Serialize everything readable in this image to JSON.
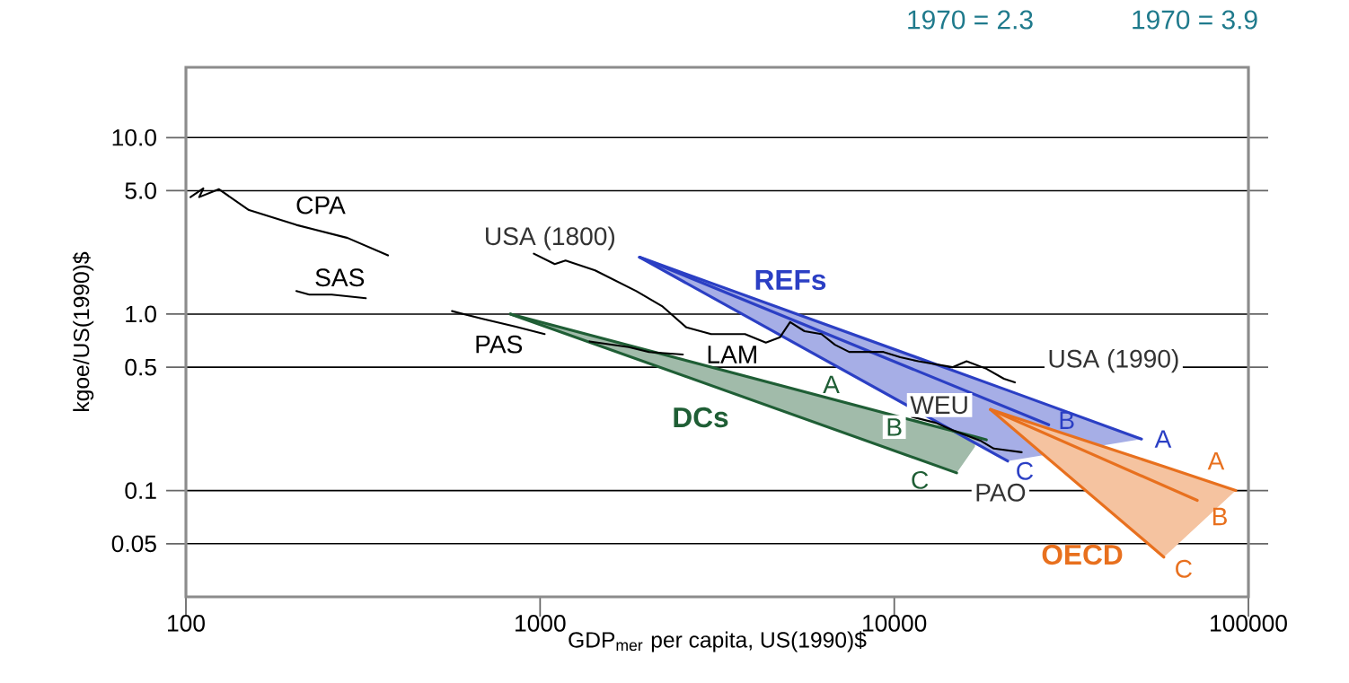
{
  "chart_data": {
    "type": "line",
    "xlabel": "GDP$_{mer}$ per capita, US(1990)$",
    "ylabel": "kgoe/US(1990)$",
    "log": "xy",
    "grid": "y",
    "xlim": [
      100,
      100000
    ],
    "ylim": [
      0.025,
      25
    ],
    "xticks": [
      100,
      1000,
      10000,
      100000
    ],
    "yticks": [
      {
        "value": 0.05,
        "label": "0.05"
      },
      {
        "value": 0.1,
        "label": "0.1"
      },
      {
        "value": 0.5,
        "label": "0.5"
      },
      {
        "value": 1,
        "label": "1.0"
      },
      {
        "value": 5,
        "label": "5.0"
      },
      {
        "value": 10,
        "label": "10.0"
      }
    ],
    "annotations": [
      "1970 = 2.3",
      "1970 = 3.9",
      {
        "text": "USA (1800)",
        "x": 960,
        "y": 2.2
      },
      {
        "text": "USA (1990)",
        "x": 21900,
        "y": 0.41
      },
      {
        "text": "WEU",
        "x": 11200,
        "y": 0.262
      },
      {
        "text": "PAO",
        "x": 19600,
        "y": 0.171
      },
      "REFs",
      {
        "text": "A",
        "x": 49900,
        "y": 0.196
      },
      {
        "text": "B",
        "x": 27300,
        "y": 0.236
      },
      {
        "text": "C",
        "x": 20900,
        "y": 0.147
      },
      "DCs",
      {
        "text": "A",
        "x": 6640,
        "y": 0.331
      },
      {
        "text": "B",
        "x": 10000,
        "y": 0.229
      },
      {
        "text": "C",
        "x": 15000,
        "y": 0.126
      },
      "OECD",
      {
        "text": "A",
        "x": 92100,
        "y": 0.1
      },
      {
        "text": "B",
        "x": 71700,
        "y": 0.088
      },
      {
        "text": "C",
        "x": 57700,
        "y": 0.042
      }
    ],
    "series": [
      {
        "name": "CPA",
        "color": "#000000",
        "x": [
          103,
          112,
          109,
          124,
          150,
          205,
          286,
          372
        ],
        "values": [
          4.6,
          5.15,
          4.6,
          5.1,
          3.9,
          3.2,
          2.7,
          2.15
        ]
      },
      {
        "name": "SAS",
        "color": "#000000",
        "x": [
          205,
          223,
          258,
          322
        ],
        "values": [
          1.35,
          1.29,
          1.29,
          1.23
        ]
      },
      {
        "color": "#000000",
        "x": [
          960,
          1100,
          1180,
          1430,
          1870,
          2210,
          2590,
          3040,
          3790,
          4340,
          4760,
          5080,
          5580,
          6230,
          6800,
          7460,
          9320,
          10400,
          11700,
          14600,
          16000,
          18200,
          20400,
          21900
        ],
        "values": [
          2.2,
          1.92,
          2.01,
          1.77,
          1.35,
          1.11,
          0.84,
          0.77,
          0.77,
          0.69,
          0.74,
          0.9,
          0.8,
          0.77,
          0.67,
          0.61,
          0.61,
          0.57,
          0.54,
          0.5,
          0.54,
          0.49,
          0.43,
          0.41
        ]
      },
      {
        "name": "PAS",
        "color": "#000000",
        "x": [
          564,
          688,
          849,
          1030
        ],
        "values": [
          1.04,
          0.94,
          0.85,
          0.77
        ]
      },
      {
        "name": "LAM",
        "color": "#000000",
        "x": [
          1380,
          1780,
          2030,
          2530
        ],
        "values": [
          0.7,
          0.65,
          0.61,
          0.59
        ]
      },
      {
        "color": "#000000",
        "x": [
          11200,
          13100,
          14600,
          17500,
          19100,
          22900
        ],
        "values": [
          0.262,
          0.242,
          0.22,
          0.192,
          0.173,
          0.165
        ]
      },
      {
        "color": "#2b3fc4",
        "x": [
          1910,
          20900,
          49900
        ],
        "values": [
          2.1,
          0.37,
          0.196
        ],
        "lower": [
          2.1,
          0.147,
          0.196
        ],
        "upper": [
          2.1,
          0.37,
          0.196
        ]
      },
      {
        "color": "#2b3fc4",
        "x": [
          1910,
          27300
        ],
        "values": [
          2.1,
          0.236
        ]
      },
      {
        "color": "#2b3fc4",
        "x": [
          1910,
          20900
        ],
        "values": [
          2.1,
          0.147
        ]
      },
      {
        "color": "#1f5e35",
        "x": [
          825,
          15000,
          16900,
          18200
        ],
        "values": [
          1.0,
          0.215,
          0.202,
          0.194
        ],
        "lower": [
          1.0,
          0.126,
          0.177,
          null
        ],
        "upper": [
          1.0,
          0.215,
          0.202,
          null
        ]
      },
      {
        "color": "#1f5e35",
        "x": [
          825,
          15000
        ],
        "values": [
          1.0,
          0.126
        ]
      },
      {
        "color": "#e8701e",
        "x": [
          18700,
          57700,
          92100
        ],
        "values": [
          0.288,
          0.137,
          0.1
        ],
        "lower": [
          0.288,
          0.042,
          0.1
        ],
        "upper": [
          0.288,
          0.137,
          0.1
        ]
      },
      {
        "color": "#e8701e",
        "x": [
          18700,
          71700
        ],
        "values": [
          0.288,
          0.088
        ]
      },
      {
        "color": "#e8701e",
        "x": [
          18700,
          57700
        ],
        "values": [
          0.288,
          0.042
        ]
      }
    ]
  }
}
